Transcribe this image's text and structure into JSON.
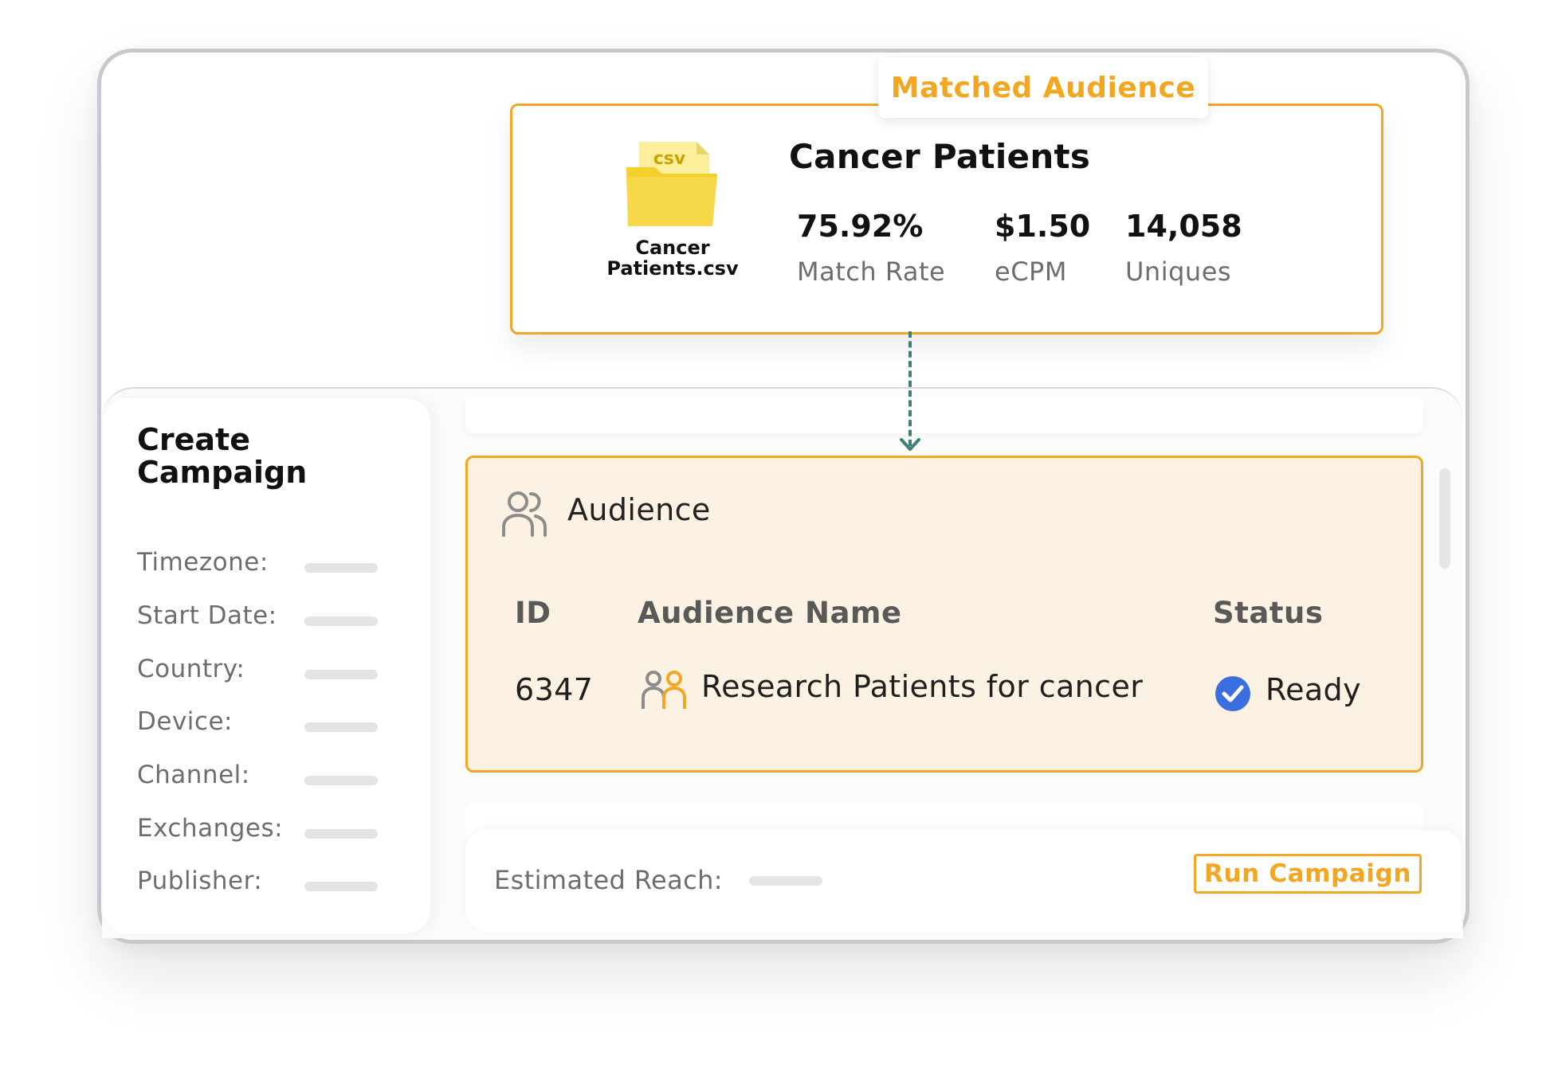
{
  "matched_audience": {
    "tab_label": "Matched Audience",
    "file": {
      "badge": "csv",
      "name_line1": "Cancer",
      "name_line2": "Patients.csv",
      "icon": "csv-folder-icon"
    },
    "title": "Cancer Patients",
    "metrics": [
      {
        "value": "75.92%",
        "label": "Match Rate"
      },
      {
        "value": "$1.50",
        "label": "eCPM"
      },
      {
        "value": "14,058",
        "label": "Uniques"
      }
    ]
  },
  "sidebar": {
    "title_line1": "Create",
    "title_line2": "Campaign",
    "fields": [
      {
        "label": "Timezone:"
      },
      {
        "label": "Start Date:"
      },
      {
        "label": "Country:"
      },
      {
        "label": "Device:"
      },
      {
        "label": "Channel:"
      },
      {
        "label": "Exchanges:"
      },
      {
        "label": "Publisher:"
      }
    ]
  },
  "audience_panel": {
    "heading": "Audience",
    "heading_icon": "users-icon",
    "columns": {
      "id": "ID",
      "name": "Audience Name",
      "status": "Status"
    },
    "rows": [
      {
        "id": "6347",
        "name": "Research Patients for cancer",
        "name_icon": "people-icon",
        "status": "Ready",
        "status_icon": "check-circle-icon"
      }
    ]
  },
  "footer": {
    "reach_label": "Estimated Reach:",
    "run_button": "Run Campaign"
  },
  "colors": {
    "accent": "#f3a621",
    "panel_bg": "#fcf2e3",
    "connector": "#3f7f78",
    "check": "#3b6fe0"
  }
}
